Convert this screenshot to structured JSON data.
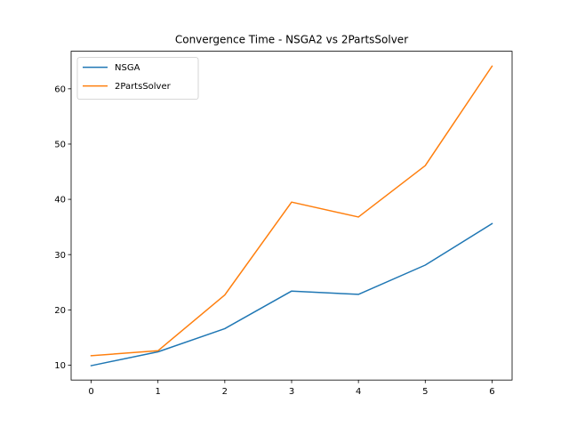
{
  "chart_data": {
    "type": "line",
    "title": "Convergence Time - NSGA2 vs 2PartsSolver",
    "xlabel": "",
    "ylabel": "",
    "x": [
      0,
      1,
      2,
      3,
      4,
      5,
      6
    ],
    "xticks": [
      "0",
      "1",
      "2",
      "3",
      "4",
      "5",
      "6"
    ],
    "yticks": [
      10,
      20,
      30,
      40,
      50,
      60
    ],
    "xlim": [
      -0.3,
      6.3
    ],
    "ylim": [
      7.3,
      66.8
    ],
    "grid": false,
    "legend_position": "top-left",
    "series": [
      {
        "name": "NSGA",
        "color": "#1f77b4",
        "values": [
          9.9,
          12.4,
          16.6,
          23.4,
          22.8,
          28.1,
          35.6
        ]
      },
      {
        "name": "2PartsSolver",
        "color": "#ff7f0e",
        "values": [
          11.7,
          12.6,
          22.7,
          39.5,
          36.8,
          46.1,
          64.1
        ]
      }
    ]
  }
}
